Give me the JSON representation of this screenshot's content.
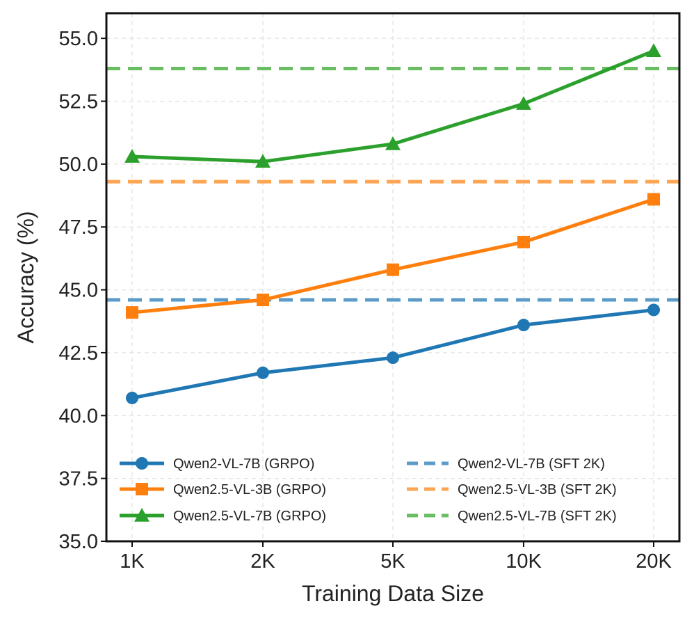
{
  "chart_data": {
    "type": "line",
    "title": "",
    "xlabel": "Training Data Size",
    "ylabel": "Accuracy (%)",
    "categories": [
      "1K",
      "2K",
      "5K",
      "10K",
      "20K"
    ],
    "ylim": [
      35.0,
      56.0
    ],
    "yticks": [
      "35.0",
      "37.5",
      "40.0",
      "42.5",
      "45.0",
      "47.5",
      "50.0",
      "52.5",
      "55.0"
    ],
    "grid": true,
    "legend_position": "lower-center",
    "series": [
      {
        "name": "Qwen2-VL-7B (GRPO)",
        "color": "#1f77b4",
        "marker": "circle",
        "values": [
          40.7,
          41.7,
          42.3,
          43.6,
          44.2
        ]
      },
      {
        "name": "Qwen2.5-VL-3B (GRPO)",
        "color": "#ff7f0e",
        "marker": "square",
        "values": [
          44.1,
          44.6,
          45.8,
          46.9,
          48.6
        ]
      },
      {
        "name": "Qwen2.5-VL-7B (GRPO)",
        "color": "#2ca02c",
        "marker": "triangle",
        "values": [
          50.3,
          50.1,
          50.8,
          52.4,
          54.5
        ]
      }
    ],
    "baselines": [
      {
        "name": "Qwen2-VL-7B (SFT 2K)",
        "color": "#5b9bc8",
        "value": 44.6
      },
      {
        "name": "Qwen2.5-VL-3B (SFT 2K)",
        "color": "#ffa451",
        "value": 49.3
      },
      {
        "name": "Qwen2.5-VL-7B (SFT 2K)",
        "color": "#6bbd63",
        "value": 53.8
      }
    ]
  }
}
